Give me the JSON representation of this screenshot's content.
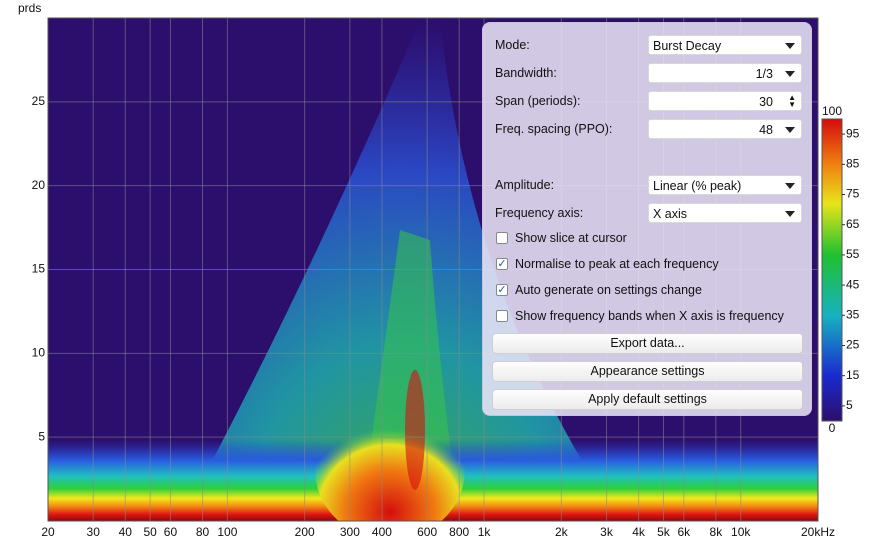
{
  "plot": {
    "y_unit": "prds",
    "ylim": [
      0,
      30
    ],
    "yticks": [
      5,
      10,
      15,
      20,
      25
    ],
    "xlim": [
      20,
      20000
    ],
    "log_x": true,
    "xticks": [
      20,
      30,
      40,
      50,
      60,
      80,
      100,
      200,
      300,
      400,
      600,
      800,
      {
        "value": 1000,
        "label": "1k"
      },
      {
        "value": 2000,
        "label": "2k"
      },
      {
        "value": 3000,
        "label": "3k"
      },
      {
        "value": 4000,
        "label": "4k"
      },
      {
        "value": 5000,
        "label": "5k"
      },
      {
        "value": 6000,
        "label": "6k"
      },
      {
        "value": 8000,
        "label": "8k"
      },
      {
        "value": 10000,
        "label": "10k"
      },
      {
        "value": 20000,
        "label": "20kHz"
      }
    ]
  },
  "colorbar": {
    "lim": [
      0,
      100
    ],
    "ticks": [
      100,
      95,
      85,
      75,
      65,
      55,
      45,
      35,
      25,
      15,
      5,
      0
    ]
  },
  "settings": {
    "rows": [
      {
        "label": "Mode:",
        "value": "Burst Decay"
      },
      {
        "label": "Bandwidth:",
        "value": "1/3"
      },
      {
        "label": "Span (periods):",
        "value": "30"
      },
      {
        "label": "Freq. spacing (PPO):",
        "value": "48"
      },
      {
        "label": "Amplitude:",
        "value": "Linear (% peak)"
      },
      {
        "label": "Frequency axis:",
        "value": "X axis"
      }
    ],
    "checkboxes": [
      {
        "label": "Show slice at cursor",
        "checked": false
      },
      {
        "label": "Normalise to peak at each frequency",
        "checked": true
      },
      {
        "label": "Auto generate on settings change",
        "checked": true
      },
      {
        "label": "Show frequency bands when X axis is frequency",
        "checked": false
      }
    ],
    "buttons": [
      "Export data...",
      "Appearance settings",
      "Apply default settings"
    ]
  }
}
